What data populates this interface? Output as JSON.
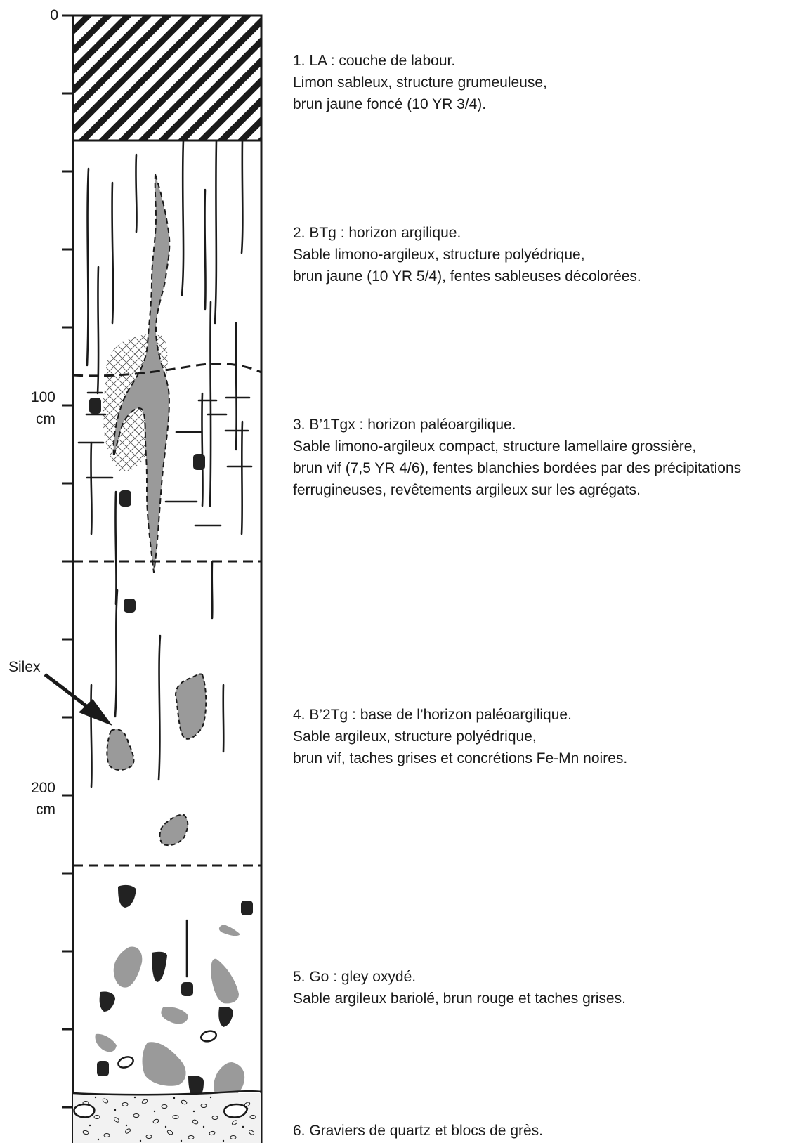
{
  "depth_labels": {
    "zero": "0",
    "d100_value": "100",
    "d100_unit": "cm",
    "d200_value": "200",
    "d200_unit": "cm"
  },
  "annotation": {
    "silex": "Silex"
  },
  "horizons": [
    {
      "title": "1. LA : couche de labour.",
      "lines": [
        "Limon sableux, structure grumeuleuse,",
        "brun jaune foncé (10 YR 3/4)."
      ]
    },
    {
      "title": "2. BTg : horizon argilique.",
      "lines": [
        "Sable limono-argileux, structure polyédrique,",
        "brun jaune (10 YR 5/4), fentes sableuses décolorées."
      ]
    },
    {
      "title": "3. B’1Tgx : horizon paléoargilique.",
      "lines": [
        "Sable limono-argileux compact, structure lamellaire grossière,",
        "brun vif (7,5 YR 4/6), fentes blanchies bordées par des précipitations",
        "ferrugineuses, revêtements argileux sur les agrégats."
      ]
    },
    {
      "title": "4. B’2Tg : base de l’horizon paléoargilique.",
      "lines": [
        "Sable argileux, structure polyédrique,",
        "brun vif, taches grises et concrétions Fe-Mn noires."
      ]
    },
    {
      "title": "5. Go : gley oxydé.",
      "lines": [
        "Sable argileux bariolé, brun rouge et taches grises."
      ]
    },
    {
      "title": "6. Graviers de quartz et blocs de grès.",
      "lines": []
    }
  ],
  "colors": {
    "ink": "#1a1a1a",
    "grey_patch": "#9a9a9a",
    "concretion": "#222222"
  }
}
